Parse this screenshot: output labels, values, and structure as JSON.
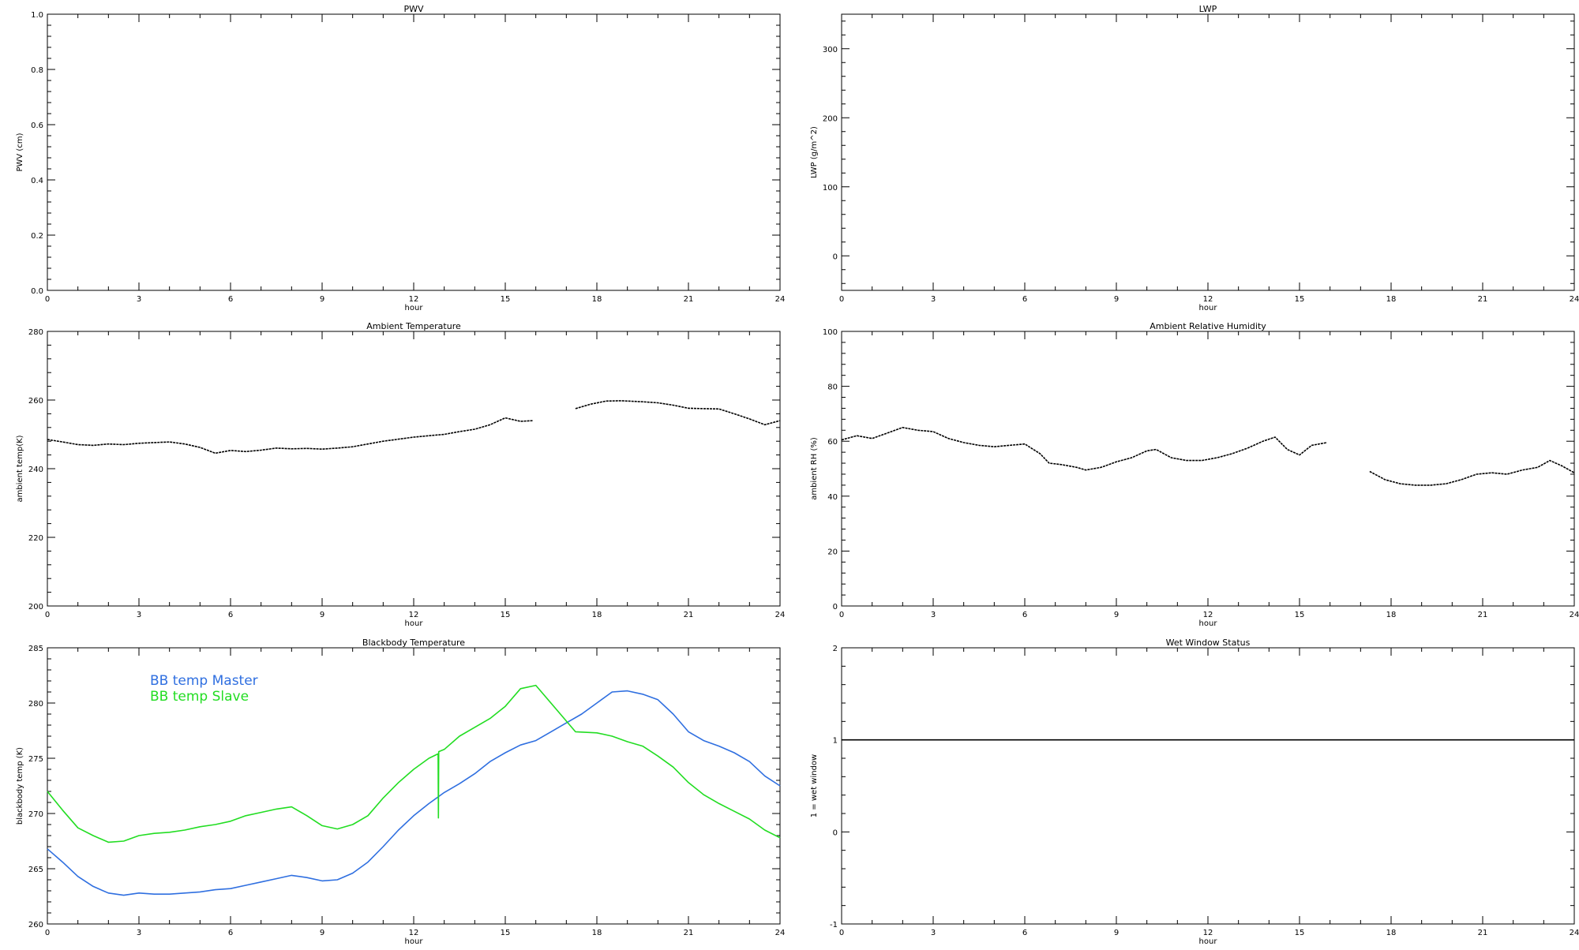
{
  "chart_data": [
    {
      "id": "pwv",
      "type": "line",
      "title": "PWV",
      "xlabel": "hour",
      "ylabel": "PWV (cm)",
      "xlim": [
        0,
        24
      ],
      "ylim": [
        0,
        1.0
      ],
      "xticks": [
        0,
        3,
        6,
        9,
        12,
        15,
        18,
        21,
        24
      ],
      "yticks": [
        0.0,
        0.2,
        0.4,
        0.6,
        0.8,
        1.0
      ],
      "ytick_labels": [
        "0.0",
        "0.2",
        "0.4",
        "0.6",
        "0.8",
        "1.0"
      ],
      "grid": false,
      "series": []
    },
    {
      "id": "lwp",
      "type": "line",
      "title": "LWP",
      "xlabel": "hour",
      "ylabel": "LWP (g/m^2)",
      "xlim": [
        0,
        24
      ],
      "ylim": [
        -50,
        350
      ],
      "xticks": [
        0,
        3,
        6,
        9,
        12,
        15,
        18,
        21,
        24
      ],
      "yticks": [
        0,
        100,
        200,
        300
      ],
      "ytick_labels": [
        "0",
        "100",
        "200",
        "300"
      ],
      "grid": false,
      "series": []
    },
    {
      "id": "temp",
      "type": "line",
      "title": "Ambient Temperature",
      "xlabel": "hour",
      "ylabel": "ambient temp(K)",
      "xlim": [
        0,
        24
      ],
      "ylim": [
        200,
        280
      ],
      "xticks": [
        0,
        3,
        6,
        9,
        12,
        15,
        18,
        21,
        24
      ],
      "yticks": [
        200,
        220,
        240,
        260,
        280
      ],
      "ytick_labels": [
        "200",
        "220",
        "240",
        "260",
        "280"
      ],
      "grid": false,
      "series": [
        {
          "color": "#000000",
          "dotted": true,
          "points": [
            [
              0,
              248.5
            ],
            [
              0.5,
              247.8
            ],
            [
              1,
              247.0
            ],
            [
              1.5,
              246.8
            ],
            [
              2,
              247.2
            ],
            [
              2.5,
              247.0
            ],
            [
              3,
              247.4
            ],
            [
              3.5,
              247.6
            ],
            [
              4,
              247.8
            ],
            [
              4.5,
              247.2
            ],
            [
              5,
              246.2
            ],
            [
              5.5,
              244.5
            ],
            [
              6,
              245.3
            ],
            [
              6.5,
              245.0
            ],
            [
              7,
              245.4
            ],
            [
              7.5,
              246.0
            ],
            [
              8,
              245.8
            ],
            [
              8.5,
              245.9
            ],
            [
              9,
              245.7
            ],
            [
              9.5,
              246.0
            ],
            [
              10,
              246.4
            ],
            [
              10.5,
              247.2
            ],
            [
              11,
              248.0
            ],
            [
              11.5,
              248.6
            ],
            [
              12,
              249.2
            ],
            [
              12.5,
              249.6
            ],
            [
              13,
              250.0
            ],
            [
              13.5,
              250.8
            ],
            [
              14,
              251.5
            ],
            [
              14.5,
              252.8
            ],
            [
              15,
              254.8
            ],
            [
              15.5,
              253.8
            ],
            [
              15.9,
              254.0
            ],
            null,
            [
              17.3,
              257.5
            ],
            [
              17.8,
              258.8
            ],
            [
              18.3,
              259.7
            ],
            [
              18.8,
              259.8
            ],
            [
              19.5,
              259.5
            ],
            [
              20,
              259.2
            ],
            [
              20.5,
              258.5
            ],
            [
              21,
              257.6
            ],
            [
              21.5,
              257.5
            ],
            [
              22,
              257.4
            ],
            [
              22.5,
              256.0
            ],
            [
              23,
              254.5
            ],
            [
              23.5,
              252.8
            ],
            [
              24,
              254.0
            ]
          ]
        }
      ]
    },
    {
      "id": "rh",
      "type": "line",
      "title": "Ambient Relative Humidity",
      "xlabel": "hour",
      "ylabel": "ambient RH (%)",
      "xlim": [
        0,
        24
      ],
      "ylim": [
        0,
        100
      ],
      "xticks": [
        0,
        3,
        6,
        9,
        12,
        15,
        18,
        21,
        24
      ],
      "yticks": [
        0,
        20,
        40,
        60,
        80,
        100
      ],
      "ytick_labels": [
        "0",
        "20",
        "40",
        "60",
        "80",
        "100"
      ],
      "grid": false,
      "series": [
        {
          "color": "#000000",
          "dotted": true,
          "points": [
            [
              0,
              60.5
            ],
            [
              0.5,
              62.0
            ],
            [
              1,
              61.0
            ],
            [
              1.5,
              63.0
            ],
            [
              2,
              65.0
            ],
            [
              2.5,
              64.0
            ],
            [
              3,
              63.5
            ],
            [
              3.5,
              61.0
            ],
            [
              4,
              59.5
            ],
            [
              4.5,
              58.5
            ],
            [
              5,
              58.0
            ],
            [
              5.5,
              58.5
            ],
            [
              6,
              59.0
            ],
            [
              6.5,
              55.5
            ],
            [
              6.8,
              52.0
            ],
            [
              7.2,
              51.5
            ],
            [
              7.7,
              50.5
            ],
            [
              8,
              49.5
            ],
            [
              8.5,
              50.5
            ],
            [
              9,
              52.5
            ],
            [
              9.5,
              54.0
            ],
            [
              10,
              56.5
            ],
            [
              10.3,
              57.0
            ],
            [
              10.8,
              54.0
            ],
            [
              11.3,
              53.0
            ],
            [
              11.8,
              53.0
            ],
            [
              12.3,
              54.0
            ],
            [
              12.8,
              55.5
            ],
            [
              13.3,
              57.5
            ],
            [
              13.8,
              60.0
            ],
            [
              14.2,
              61.5
            ],
            [
              14.6,
              57.0
            ],
            [
              15,
              55.0
            ],
            [
              15.4,
              58.5
            ],
            [
              15.9,
              59.5
            ],
            null,
            [
              17.3,
              49.0
            ],
            [
              17.8,
              46.0
            ],
            [
              18.3,
              44.5
            ],
            [
              18.8,
              44.0
            ],
            [
              19.3,
              44.0
            ],
            [
              19.8,
              44.5
            ],
            [
              20.3,
              46.0
            ],
            [
              20.8,
              48.0
            ],
            [
              21.3,
              48.5
            ],
            [
              21.8,
              48.0
            ],
            [
              22.3,
              49.5
            ],
            [
              22.8,
              50.5
            ],
            [
              23.2,
              53.0
            ],
            [
              23.6,
              51.0
            ],
            [
              24,
              48.5
            ]
          ]
        }
      ]
    },
    {
      "id": "bb",
      "type": "line",
      "title": "Blackbody Temperature",
      "xlabel": "hour",
      "ylabel": "blackbody temp (K)",
      "xlim": [
        0,
        24
      ],
      "ylim": [
        260,
        285
      ],
      "xticks": [
        0,
        3,
        6,
        9,
        12,
        15,
        18,
        21,
        24
      ],
      "yticks": [
        260,
        265,
        270,
        275,
        280,
        285
      ],
      "ytick_labels": [
        "260",
        "265",
        "270",
        "275",
        "280",
        "285"
      ],
      "grid": false,
      "legend": "top-left",
      "series": [
        {
          "name": "BB temp Master",
          "color": "#2f6fe0",
          "points": [
            [
              0,
              266.8
            ],
            [
              0.5,
              265.6
            ],
            [
              1,
              264.3
            ],
            [
              1.5,
              263.4
            ],
            [
              2,
              262.8
            ],
            [
              2.5,
              262.6
            ],
            [
              3,
              262.8
            ],
            [
              3.5,
              262.7
            ],
            [
              4,
              262.7
            ],
            [
              4.5,
              262.8
            ],
            [
              5,
              262.9
            ],
            [
              5.5,
              263.1
            ],
            [
              6,
              263.2
            ],
            [
              6.5,
              263.5
            ],
            [
              7,
              263.8
            ],
            [
              7.5,
              264.1
            ],
            [
              8,
              264.4
            ],
            [
              8.5,
              264.2
            ],
            [
              9,
              263.9
            ],
            [
              9.5,
              264.0
            ],
            [
              10,
              264.6
            ],
            [
              10.5,
              265.6
            ],
            [
              11,
              267.0
            ],
            [
              11.5,
              268.5
            ],
            [
              12,
              269.8
            ],
            [
              12.5,
              270.9
            ],
            [
              13,
              271.9
            ],
            [
              13.5,
              272.7
            ],
            [
              14,
              273.6
            ],
            [
              14.5,
              274.7
            ],
            [
              15,
              275.5
            ],
            [
              15.5,
              276.2
            ],
            [
              16,
              276.6
            ],
            [
              16.5,
              277.4
            ],
            [
              17,
              278.2
            ],
            [
              17.5,
              279.0
            ],
            [
              18,
              280.0
            ],
            [
              18.5,
              281.0
            ],
            [
              19,
              281.1
            ],
            [
              19.5,
              280.8
            ],
            [
              20,
              280.3
            ],
            [
              20.5,
              279.0
            ],
            [
              21,
              277.4
            ],
            [
              21.5,
              276.6
            ],
            [
              22,
              276.1
            ],
            [
              22.5,
              275.5
            ],
            [
              23,
              274.7
            ],
            [
              23.5,
              273.4
            ],
            [
              24,
              272.5
            ]
          ]
        },
        {
          "name": "BB temp Slave",
          "color": "#22dd22",
          "points": [
            [
              0,
              272.0
            ],
            [
              0.5,
              270.3
            ],
            [
              1,
              268.7
            ],
            [
              1.5,
              268.0
            ],
            [
              2,
              267.4
            ],
            [
              2.5,
              267.5
            ],
            [
              3,
              268.0
            ],
            [
              3.5,
              268.2
            ],
            [
              4,
              268.3
            ],
            [
              4.5,
              268.5
            ],
            [
              5,
              268.8
            ],
            [
              5.5,
              269.0
            ],
            [
              6,
              269.3
            ],
            [
              6.5,
              269.8
            ],
            [
              7,
              270.1
            ],
            [
              7.5,
              270.4
            ],
            [
              8,
              270.6
            ],
            [
              8.5,
              269.8
            ],
            [
              9,
              268.9
            ],
            [
              9.5,
              268.6
            ],
            [
              10,
              269.0
            ],
            [
              10.5,
              269.8
            ],
            [
              11,
              271.4
            ],
            [
              11.5,
              272.8
            ],
            [
              12,
              274.0
            ],
            [
              12.5,
              275.0
            ],
            [
              12.8,
              275.4
            ],
            [
              12.81,
              269.6
            ],
            [
              12.82,
              275.6
            ],
            [
              13,
              275.8
            ],
            [
              13.5,
              277.0
            ],
            [
              14,
              277.8
            ],
            [
              14.5,
              278.6
            ],
            [
              15,
              279.7
            ],
            [
              15.5,
              281.3
            ],
            [
              16,
              281.6
            ],
            [
              17.3,
              277.4
            ],
            [
              18,
              277.3
            ],
            [
              18.5,
              277.0
            ],
            [
              19,
              276.5
            ],
            [
              19.5,
              276.1
            ],
            [
              20,
              275.2
            ],
            [
              20.5,
              274.2
            ],
            [
              21,
              272.8
            ],
            [
              21.5,
              271.7
            ],
            [
              22,
              270.9
            ],
            [
              22.5,
              270.2
            ],
            [
              23,
              269.5
            ],
            [
              23.5,
              268.5
            ],
            [
              24,
              267.8
            ]
          ]
        }
      ]
    },
    {
      "id": "wet",
      "type": "line",
      "title": "Wet Window Status",
      "xlabel": "hour",
      "ylabel": "1 = wet window",
      "xlim": [
        0,
        24
      ],
      "ylim": [
        -1,
        2
      ],
      "xticks": [
        0,
        3,
        6,
        9,
        12,
        15,
        18,
        21,
        24
      ],
      "yticks": [
        -1,
        0,
        1,
        2
      ],
      "ytick_labels": [
        "-1",
        "0",
        "1",
        "2"
      ],
      "grid": false,
      "series": [
        {
          "color": "#000000",
          "points": [
            [
              0,
              1
            ],
            [
              24,
              1
            ]
          ]
        }
      ]
    }
  ]
}
